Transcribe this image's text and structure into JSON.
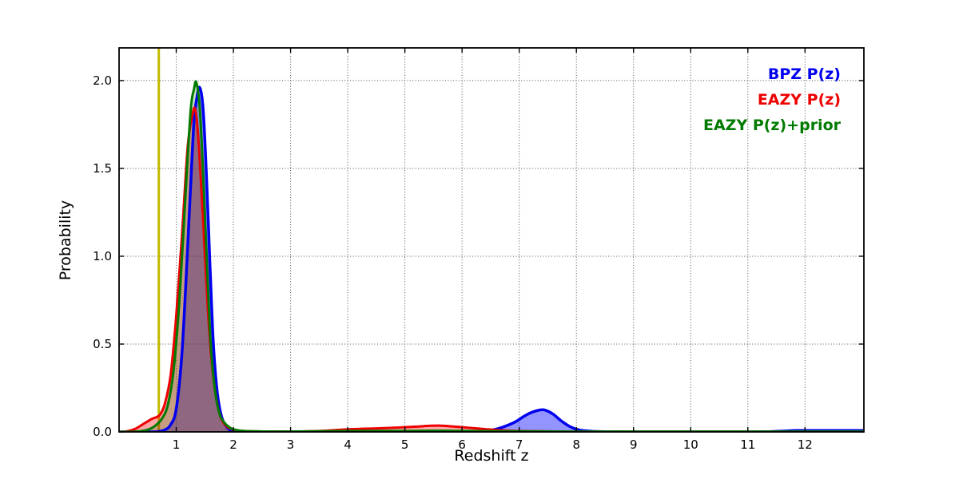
{
  "figure": {
    "background": "#ffffff"
  },
  "axes": {
    "xlabel": "Redshift z",
    "ylabel": "Probability",
    "xlim": [
      0,
      13.03
    ],
    "ylim": [
      0,
      2.186
    ],
    "xticks": [
      1,
      2,
      3,
      4,
      5,
      6,
      7,
      8,
      9,
      10,
      11,
      12
    ],
    "xtick_labels": [
      "1",
      "2",
      "3",
      "4",
      "5",
      "6",
      "7",
      "8",
      "9",
      "10",
      "11",
      "12"
    ],
    "yticks": [
      0.0,
      0.5,
      1.0,
      1.5,
      2.0
    ],
    "ytick_labels": [
      "0.0",
      "0.5",
      "1.0",
      "1.5",
      "2.0"
    ],
    "grid": "dotted",
    "grid_color": "#222222",
    "spine_color": "#000000"
  },
  "legend": {
    "position": "top-right",
    "items": [
      {
        "label": "BPZ P(z)",
        "color": "#0000ee"
      },
      {
        "label": "EAZY P(z)",
        "color": "#ee0000"
      },
      {
        "label": "EAZY P(z)+prior",
        "color": "#007a00"
      }
    ]
  },
  "annotations": {
    "vline": {
      "x": 0.695,
      "color": "#c3b900",
      "width": 3,
      "meaning": "marker-line"
    }
  },
  "chart_data": {
    "type": "line",
    "title": "",
    "xlabel": "Redshift z",
    "ylabel": "Probability",
    "xlim": [
      0,
      13.03
    ],
    "ylim": [
      0,
      2.186
    ],
    "legend_position": "top-right",
    "grid": "dotted-both-axes",
    "series": [
      {
        "name": "BPZ P(z)",
        "color": "#0000ee",
        "line_width": 3.5,
        "fill": "rgba(0,0,255,0.42)",
        "peaks": [
          {
            "x": 1.41,
            "y": 1.96
          },
          {
            "x": 7.42,
            "y": 0.126
          }
        ],
        "points": [
          [
            0,
            0
          ],
          [
            0.5,
            0
          ],
          [
            0.68,
            0.002
          ],
          [
            0.8,
            0.012
          ],
          [
            0.9,
            0.04
          ],
          [
            1.0,
            0.13
          ],
          [
            1.1,
            0.45
          ],
          [
            1.2,
            1.05
          ],
          [
            1.3,
            1.72
          ],
          [
            1.36,
            1.9
          ],
          [
            1.41,
            1.96
          ],
          [
            1.47,
            1.84
          ],
          [
            1.53,
            1.45
          ],
          [
            1.59,
            0.95
          ],
          [
            1.65,
            0.5
          ],
          [
            1.72,
            0.22
          ],
          [
            1.8,
            0.08
          ],
          [
            1.9,
            0.022
          ],
          [
            2.0,
            0.006
          ],
          [
            2.15,
            0.002
          ],
          [
            2.35,
            0
          ],
          [
            3,
            0
          ],
          [
            4,
            0
          ],
          [
            5,
            0
          ],
          [
            6,
            0
          ],
          [
            6.3,
            0.003
          ],
          [
            6.6,
            0.016
          ],
          [
            6.9,
            0.052
          ],
          [
            7.1,
            0.092
          ],
          [
            7.25,
            0.115
          ],
          [
            7.42,
            0.126
          ],
          [
            7.58,
            0.104
          ],
          [
            7.74,
            0.062
          ],
          [
            7.9,
            0.028
          ],
          [
            8.05,
            0.011
          ],
          [
            8.25,
            0.004
          ],
          [
            8.5,
            0.001
          ],
          [
            9,
            0
          ],
          [
            10,
            0
          ],
          [
            11,
            0
          ],
          [
            11.4,
            0.002
          ],
          [
            11.65,
            0.005
          ],
          [
            11.85,
            0.008
          ],
          [
            12.3,
            0.008
          ],
          [
            13.03,
            0.008
          ]
        ]
      },
      {
        "name": "EAZY P(z)",
        "color": "#ee0000",
        "line_width": 3,
        "fill": "rgba(255,0,0,0.35)",
        "peaks": [
          {
            "x": 1.33,
            "y": 1.84
          },
          {
            "x": 5.55,
            "y": 0.036
          }
        ],
        "points": [
          [
            0,
            0
          ],
          [
            0.1,
            0.002
          ],
          [
            0.2,
            0.008
          ],
          [
            0.3,
            0.02
          ],
          [
            0.4,
            0.04
          ],
          [
            0.5,
            0.06
          ],
          [
            0.58,
            0.075
          ],
          [
            0.66,
            0.085
          ],
          [
            0.72,
            0.1
          ],
          [
            0.8,
            0.16
          ],
          [
            0.9,
            0.32
          ],
          [
            1.0,
            0.66
          ],
          [
            1.1,
            1.12
          ],
          [
            1.2,
            1.62
          ],
          [
            1.28,
            1.8
          ],
          [
            1.33,
            1.84
          ],
          [
            1.38,
            1.7
          ],
          [
            1.44,
            1.38
          ],
          [
            1.5,
            1.02
          ],
          [
            1.56,
            0.66
          ],
          [
            1.62,
            0.4
          ],
          [
            1.7,
            0.19
          ],
          [
            1.78,
            0.08
          ],
          [
            1.88,
            0.032
          ],
          [
            1.98,
            0.015
          ],
          [
            2.1,
            0.007
          ],
          [
            2.3,
            0.003
          ],
          [
            2.7,
            0.002
          ],
          [
            3.1,
            0.002
          ],
          [
            3.5,
            0.005
          ],
          [
            3.8,
            0.011
          ],
          [
            4.1,
            0.016
          ],
          [
            4.5,
            0.02
          ],
          [
            4.9,
            0.025
          ],
          [
            5.2,
            0.03
          ],
          [
            5.45,
            0.035
          ],
          [
            5.6,
            0.036
          ],
          [
            5.8,
            0.032
          ],
          [
            6.1,
            0.024
          ],
          [
            6.4,
            0.016
          ],
          [
            6.7,
            0.009
          ],
          [
            7.0,
            0.005
          ],
          [
            7.4,
            0.003
          ],
          [
            7.9,
            0.002
          ],
          [
            8.5,
            0.001
          ],
          [
            10,
            0.001
          ],
          [
            11.5,
            0.001
          ],
          [
            13.03,
            0.001
          ]
        ]
      },
      {
        "name": "EAZY P(z)+prior",
        "color": "#007a00",
        "line_width": 3,
        "fill": "rgba(0,128,0,0.22)",
        "peaks": [
          {
            "x": 1.35,
            "y": 1.99
          }
        ],
        "points": [
          [
            0,
            0
          ],
          [
            0.3,
            0.002
          ],
          [
            0.45,
            0.008
          ],
          [
            0.55,
            0.018
          ],
          [
            0.65,
            0.04
          ],
          [
            0.75,
            0.075
          ],
          [
            0.85,
            0.15
          ],
          [
            0.95,
            0.34
          ],
          [
            1.05,
            0.72
          ],
          [
            1.15,
            1.28
          ],
          [
            1.25,
            1.82
          ],
          [
            1.31,
            1.95
          ],
          [
            1.35,
            1.99
          ],
          [
            1.41,
            1.85
          ],
          [
            1.47,
            1.48
          ],
          [
            1.53,
            1.02
          ],
          [
            1.6,
            0.52
          ],
          [
            1.68,
            0.23
          ],
          [
            1.76,
            0.1
          ],
          [
            1.85,
            0.05
          ],
          [
            1.95,
            0.022
          ],
          [
            2.05,
            0.011
          ],
          [
            2.2,
            0.005
          ],
          [
            2.4,
            0.003
          ],
          [
            2.8,
            0.002
          ],
          [
            3.4,
            0.003
          ],
          [
            4.0,
            0.005
          ],
          [
            5.0,
            0.006
          ],
          [
            5.6,
            0.007
          ],
          [
            6.2,
            0.005
          ],
          [
            7.0,
            0.003
          ],
          [
            8.0,
            0.002
          ],
          [
            9.0,
            0.002
          ],
          [
            11,
            0.002
          ],
          [
            13.03,
            0.002
          ]
        ]
      }
    ]
  }
}
